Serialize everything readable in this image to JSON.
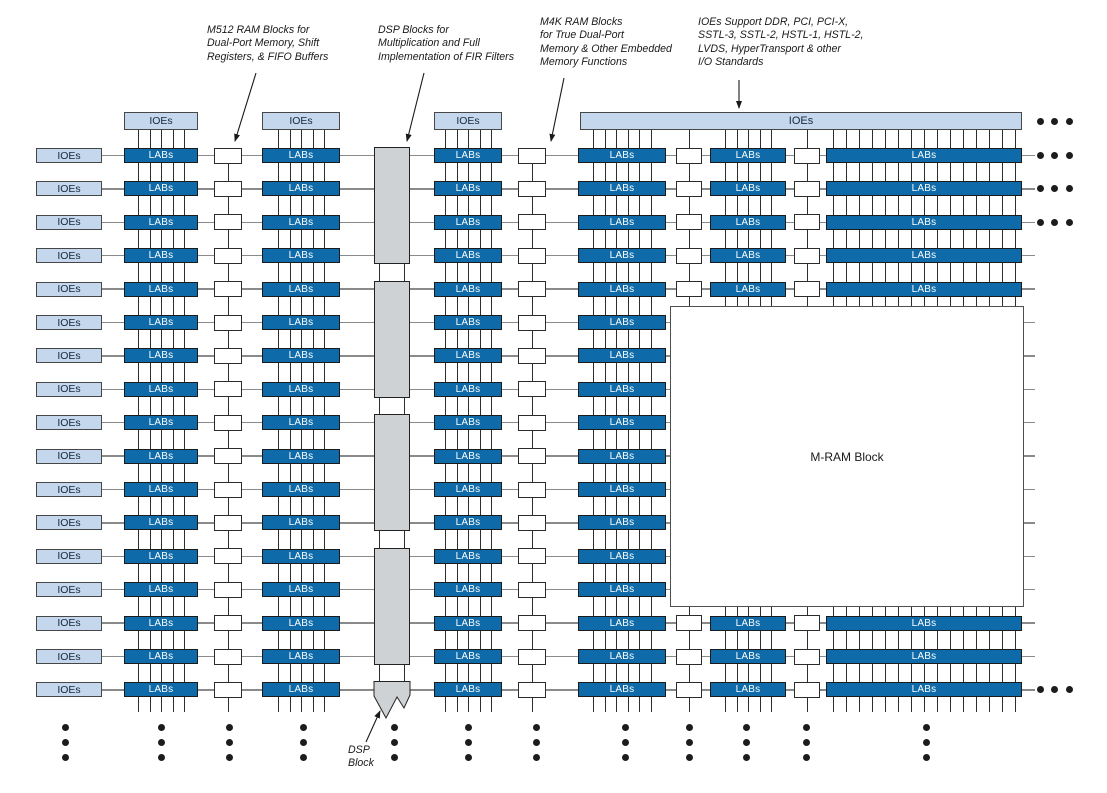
{
  "title": "FPGA device floorplan block diagram",
  "labels": {
    "ioe": "IOEs",
    "lab": "LABs",
    "mram": "M-RAM Block",
    "dsp_caption": "DSP\nBlock"
  },
  "annotations": {
    "m512": "M512 RAM Blocks for\nDual-Port Memory, Shift\nRegisters, & FIFO Buffers",
    "dsp": "DSP Blocks for\nMultiplication and Full\nImplementation of FIR Filters",
    "m4k": "M4K RAM Blocks\nfor True Dual-Port\nMemory & Other Embedded\nMemory Functions",
    "ioe": "IOEs Support DDR, PCI, PCI-X,\nSSTL-3, SSTL-2, HSTL-1, HSTL-2,\nLVDS, HyperTransport & other\nI/O Standards"
  },
  "colors": {
    "lab_fill": "#0e6aa8",
    "ioe_fill": "#c5d7ec",
    "dsp_fill": "#ced2d4",
    "m512_fill": "#ffffff",
    "mram_fill": "#ffffff",
    "h_line": "#8a8a8a",
    "v_line": "#2e2e2e",
    "dot": "#1c1c1c",
    "text": "#1a1a1a"
  },
  "structure": {
    "rows": 17,
    "left_ioe_rows": 17,
    "lab_columns": 6,
    "m512_columns": 4,
    "dsp_full_blocks": 4,
    "dsp_rows_per_block": 4,
    "mram_hidden_row_start": 5,
    "mram_hidden_row_end": 13,
    "top_ioe_headers": 3,
    "bottom_dot_columns": 12,
    "right_dot_rows": 5
  }
}
